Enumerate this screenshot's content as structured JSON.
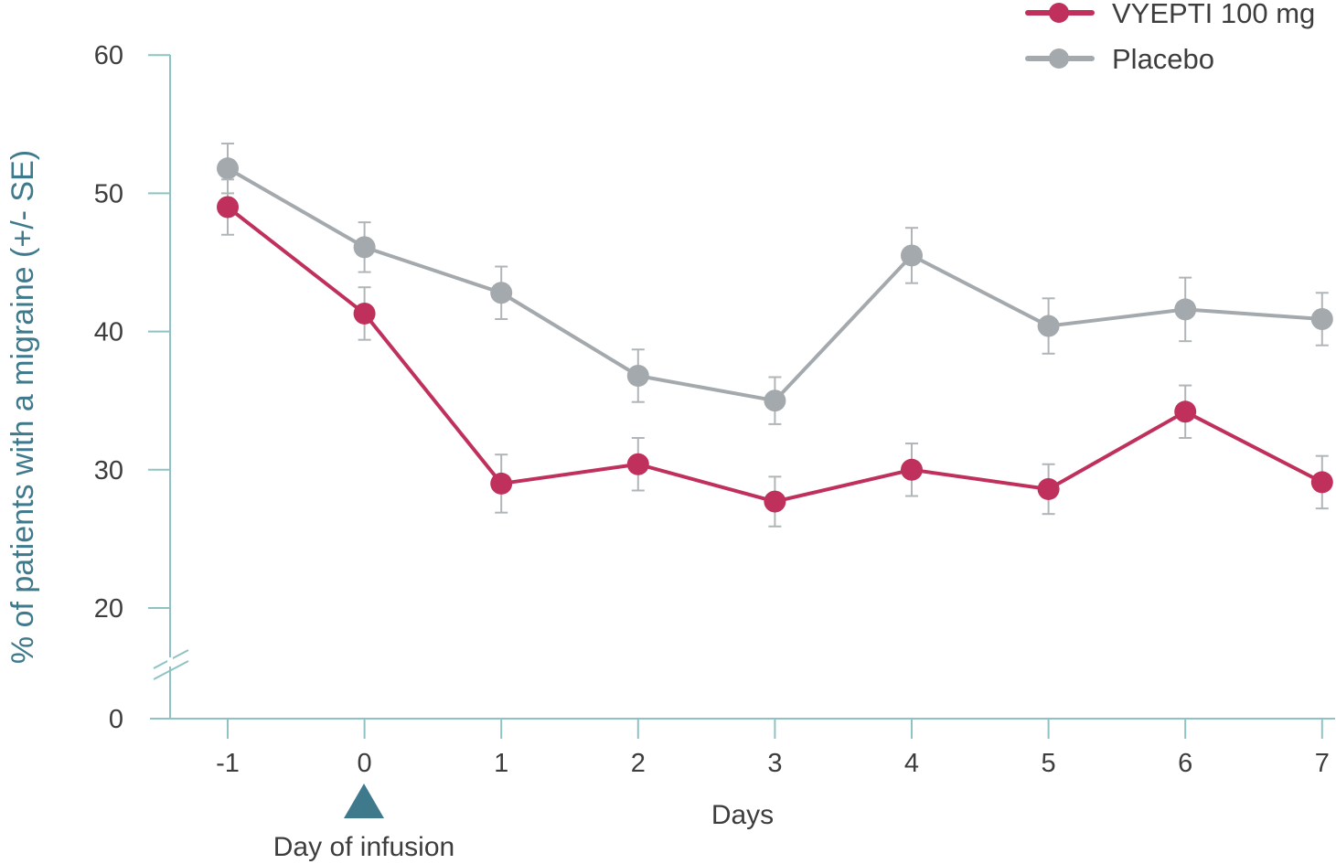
{
  "chart_data": {
    "type": "line",
    "title": "",
    "xlabel": "Days",
    "ylabel": "% of patients with a migraine (+/- SE)",
    "x": [
      -1,
      0,
      1,
      2,
      3,
      4,
      5,
      6,
      7
    ],
    "x_tick_labels": [
      "-1",
      "0",
      "1",
      "2",
      "3",
      "4",
      "5",
      "6",
      "7"
    ],
    "y_ticks": [
      0,
      20,
      30,
      40,
      50,
      60
    ],
    "y_tick_labels": [
      "0",
      "20",
      "30",
      "40",
      "50",
      "60"
    ],
    "ylim": [
      0,
      60
    ],
    "y_axis_break": [
      0,
      20
    ],
    "grid": false,
    "legend_position": "top-right",
    "annotation": {
      "label": "Day of infusion",
      "x": 0,
      "marker": "triangle",
      "color": "#3f7a8c"
    },
    "series": [
      {
        "name": "VYEPTI 100 mg",
        "color": "#c0305c",
        "values": [
          49.0,
          41.3,
          29.0,
          30.4,
          27.7,
          30.0,
          28.6,
          34.2,
          29.1
        ],
        "se": [
          2.0,
          1.9,
          2.1,
          1.9,
          1.8,
          1.9,
          1.8,
          1.9,
          1.9
        ]
      },
      {
        "name": "Placebo",
        "color": "#a4a9ad",
        "values": [
          51.8,
          46.1,
          42.8,
          36.8,
          35.0,
          45.5,
          40.4,
          41.6,
          40.9
        ],
        "se": [
          1.8,
          1.8,
          1.9,
          1.9,
          1.7,
          2.0,
          2.0,
          2.3,
          1.9
        ]
      }
    ],
    "axis_color": "#8fc3c3"
  }
}
